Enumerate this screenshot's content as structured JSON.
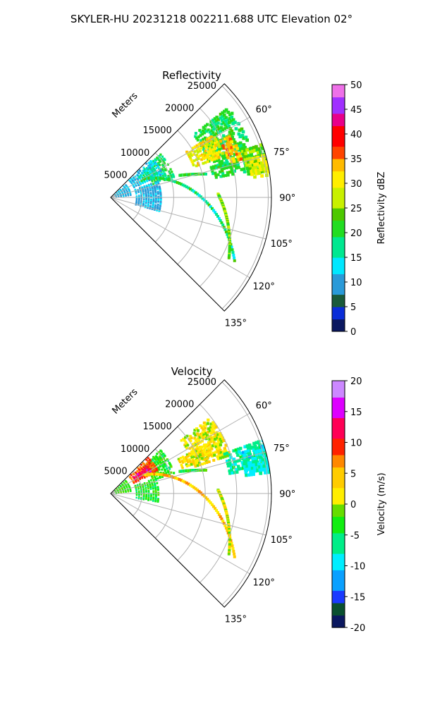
{
  "figure": {
    "suptitle": "SKYLER-HU  20231218  002211.688 UTC Elevation 02°"
  },
  "chart_data": [
    {
      "type": "heatmap",
      "title": "Reflectivity",
      "range_label": "Meters",
      "r_ticks": [
        "5000",
        "10000",
        "15000",
        "20000",
        "25000"
      ],
      "r_tick_values": [
        5000,
        10000,
        15000,
        20000,
        25000
      ],
      "r_max": 25500,
      "az_ticks": [
        "60°",
        "75°",
        "90°",
        "105°",
        "120°",
        "135°"
      ],
      "az_tick_values": [
        60,
        75,
        90,
        105,
        120,
        135
      ],
      "az_range": [
        45,
        135
      ],
      "grid": true,
      "colorbar": {
        "label": "Reflectivity dBZ",
        "min": 0,
        "max": 50,
        "ticks": [
          "0",
          "5",
          "10",
          "15",
          "20",
          "25",
          "30",
          "35",
          "40",
          "45",
          "50"
        ],
        "tick_values": [
          0,
          5,
          10,
          15,
          20,
          25,
          30,
          35,
          40,
          45,
          50
        ]
      },
      "echo_regions": [
        {
          "az": [
            52,
            79
          ],
          "r": [
            16500,
            23500
          ],
          "value": 20
        },
        {
          "az": [
            58,
            70
          ],
          "r": [
            14000,
            19000
          ],
          "value": 30
        },
        {
          "az": [
            62,
            73
          ],
          "r": [
            19500,
            21500
          ],
          "value": 33
        },
        {
          "az": [
            70,
            80
          ],
          "r": [
            22000,
            25500
          ],
          "value": 24
        },
        {
          "az": [
            74,
            82
          ],
          "r": [
            22500,
            25500
          ],
          "value": 29
        },
        {
          "az": [
            48,
            72
          ],
          "r": [
            7000,
            10500
          ],
          "value": 19
        },
        {
          "az": [
            46,
            82
          ],
          "r": [
            800,
            3200
          ],
          "value": 10
        },
        {
          "az": [
            45,
            65
          ],
          "r": [
            4000,
            9000
          ],
          "value": 12
        },
        {
          "az": [
            70,
            105
          ],
          "r": [
            4000,
            8000
          ],
          "value": 10
        },
        {
          "az": [
            52,
            62
          ],
          "r": [
            5500,
            8500
          ],
          "value": 17
        }
      ],
      "echo_lines": [
        {
          "az": [
            60,
            117
          ],
          "r": [
            6000,
            22000
          ],
          "value": 19
        },
        {
          "az": [
            88,
            117
          ],
          "r": [
            17000,
            21000
          ],
          "value": 24
        },
        {
          "az": [
            72,
            76
          ],
          "r": [
            11500,
            15500
          ],
          "value": 21
        }
      ]
    },
    {
      "type": "heatmap",
      "title": "Velocity",
      "range_label": "Meters",
      "r_ticks": [
        "5000",
        "10000",
        "15000",
        "20000",
        "25000"
      ],
      "r_tick_values": [
        5000,
        10000,
        15000,
        20000,
        25000
      ],
      "r_max": 25500,
      "az_ticks": [
        "60°",
        "75°",
        "90°",
        "105°",
        "120°",
        "135°"
      ],
      "az_tick_values": [
        60,
        75,
        90,
        105,
        120,
        135
      ],
      "az_range": [
        45,
        135
      ],
      "grid": true,
      "colorbar": {
        "label": "Velocity (m/s)",
        "min": -20,
        "max": 20,
        "ticks": [
          "-20",
          "-15",
          "-10",
          "-5",
          "0",
          "5",
          "10",
          "15",
          "20"
        ],
        "tick_values": [
          -20,
          -15,
          -10,
          -5,
          0,
          5,
          10,
          15,
          20
        ]
      },
      "echo_regions": [
        {
          "az": [
            52,
            72
          ],
          "r": [
            14000,
            20000
          ],
          "value": 1
        },
        {
          "az": [
            62,
            70
          ],
          "r": [
            12000,
            17000
          ],
          "value": 2
        },
        {
          "az": [
            70,
            80
          ],
          "r": [
            19000,
            25500
          ],
          "value": -7
        },
        {
          "az": [
            72,
            82
          ],
          "r": [
            21500,
            25500
          ],
          "value": -9
        },
        {
          "az": [
            48,
            72
          ],
          "r": [
            7000,
            10500
          ],
          "value": -4
        },
        {
          "az": [
            46,
            82
          ],
          "r": [
            800,
            3200
          ],
          "value": -3
        },
        {
          "az": [
            45,
            64
          ],
          "r": [
            4000,
            8500
          ],
          "value": 8
        },
        {
          "az": [
            52,
            60
          ],
          "r": [
            4500,
            7500
          ],
          "value": 12
        },
        {
          "az": [
            70,
            100
          ],
          "r": [
            4000,
            7500
          ],
          "value": -4
        }
      ],
      "echo_lines": [
        {
          "az": [
            60,
            117
          ],
          "r": [
            6000,
            22000
          ],
          "value": 4
        },
        {
          "az": [
            88,
            117
          ],
          "r": [
            17000,
            21000
          ],
          "value": 1
        },
        {
          "az": [
            72,
            76
          ],
          "r": [
            11500,
            15500
          ],
          "value": -4
        }
      ]
    }
  ]
}
